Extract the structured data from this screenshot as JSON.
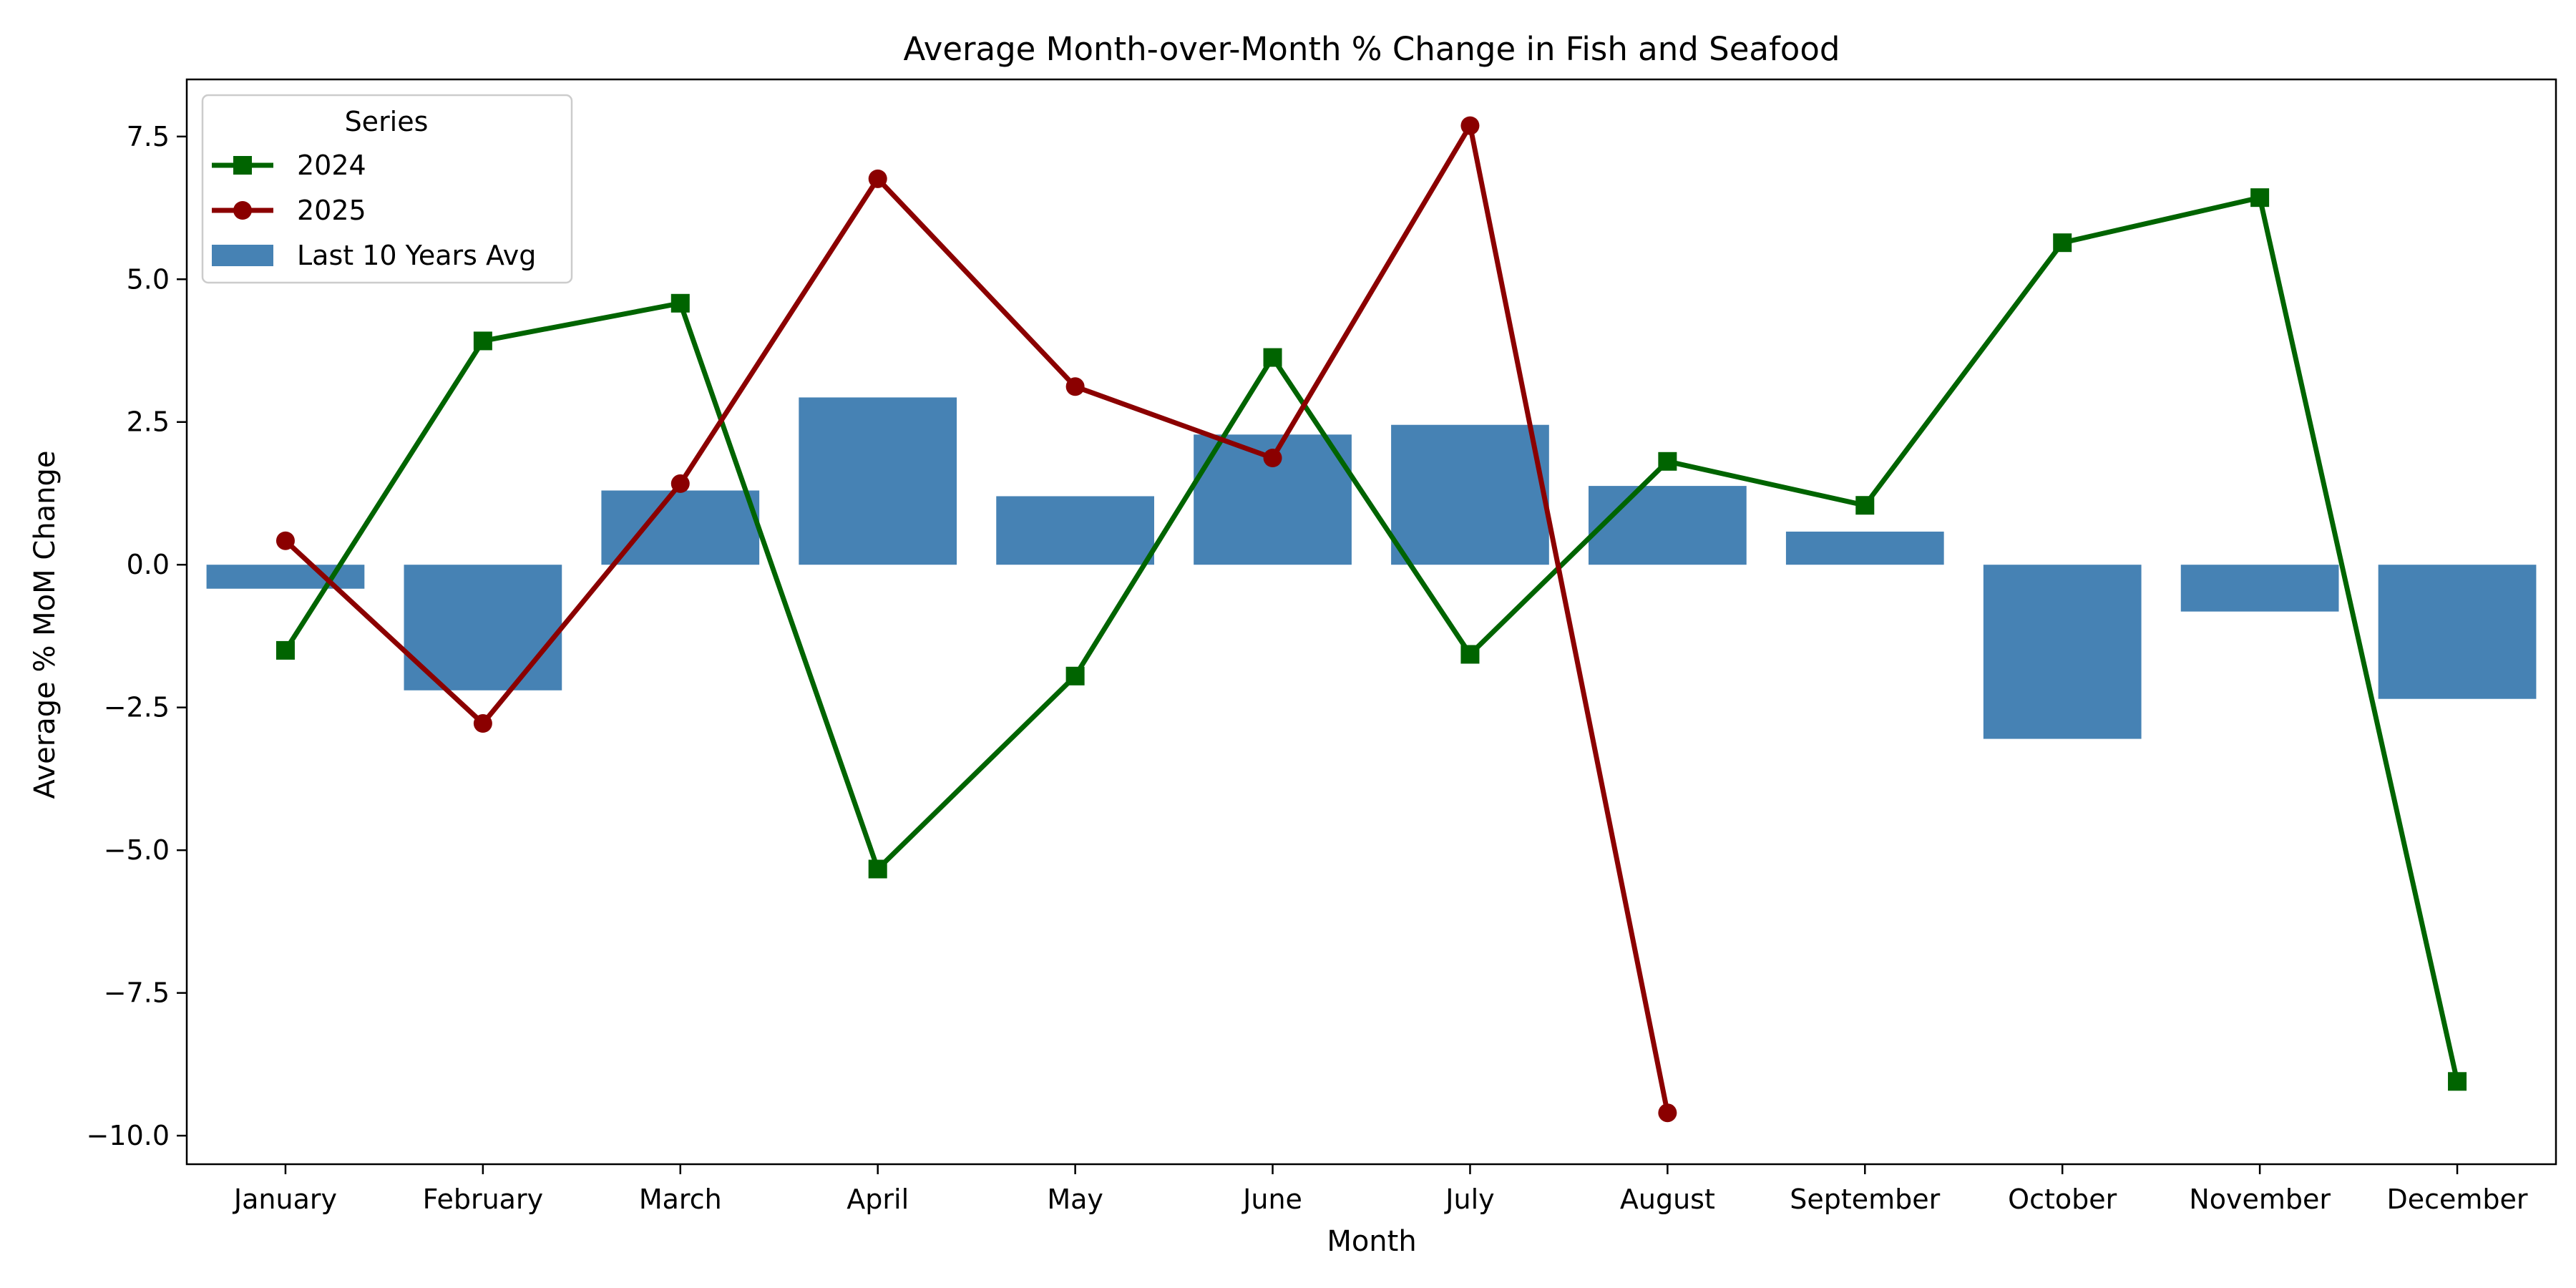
{
  "chart_data": {
    "type": "bar",
    "title": "Average Month-over-Month % Change in Fish and Seafood",
    "xlabel": "Month",
    "ylabel": "Average % MoM Change",
    "ylim": [
      -10.5,
      8.5
    ],
    "yticks": [
      7.5,
      5.0,
      2.5,
      0.0,
      -2.5,
      -5.0,
      -7.5,
      -10.0
    ],
    "ytick_labels": [
      "7.5",
      "5.0",
      "2.5",
      "0.0",
      "−2.5",
      "−5.0",
      "−7.5",
      "−10.0"
    ],
    "categories": [
      "January",
      "February",
      "March",
      "April",
      "May",
      "June",
      "July",
      "August",
      "September",
      "October",
      "November",
      "December"
    ],
    "grid": false,
    "legend": {
      "title": "Series",
      "placement": "top-left"
    },
    "series": [
      {
        "name": "Last 10 Years Avg",
        "kind": "bar",
        "color": "#4682b4",
        "values": [
          -0.42,
          -2.2,
          1.3,
          2.93,
          1.2,
          2.28,
          2.45,
          1.38,
          0.58,
          -3.05,
          -0.82,
          -2.35
        ]
      },
      {
        "name": "2024",
        "kind": "line",
        "marker": "square",
        "color": "#006400",
        "values": [
          -1.5,
          3.92,
          4.58,
          -5.33,
          -1.95,
          3.63,
          -1.57,
          1.81,
          1.04,
          5.64,
          6.43,
          -9.05
        ]
      },
      {
        "name": "2025",
        "kind": "line",
        "marker": "circle",
        "color": "#8b0000",
        "values": [
          0.42,
          -2.78,
          1.42,
          6.76,
          3.12,
          1.87,
          7.69,
          -9.6,
          null,
          null,
          null,
          null
        ]
      }
    ]
  }
}
